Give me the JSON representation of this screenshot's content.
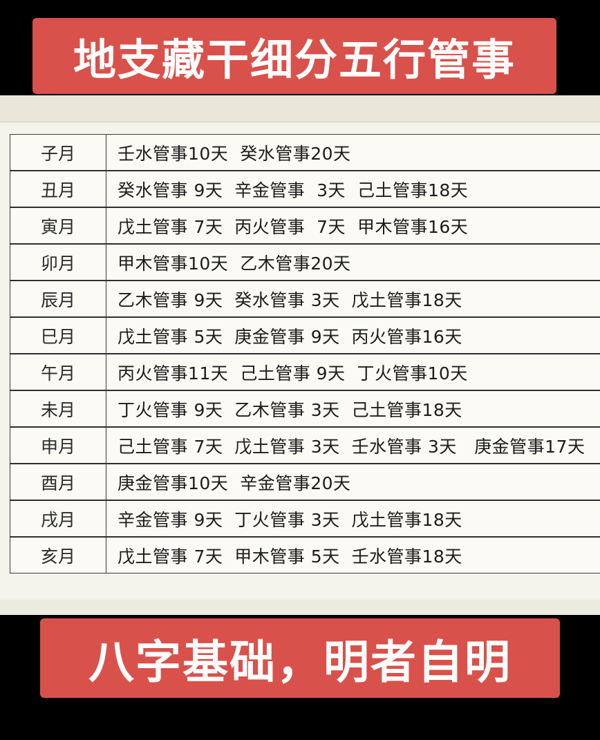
{
  "header": {
    "title": "地支藏干细分五行管事"
  },
  "footer": {
    "caption": "八字基础，明者自明"
  },
  "table": {
    "rows": [
      {
        "month": "子月",
        "detail": "壬水管事10天  癸水管事20天"
      },
      {
        "month": "丑月",
        "detail": "癸水管事 9天  辛金管事  3天  己土管事18天"
      },
      {
        "month": "寅月",
        "detail": "戊土管事 7天  丙火管事  7天  甲木管事16天"
      },
      {
        "month": "卯月",
        "detail": "甲木管事10天  乙木管事20天"
      },
      {
        "month": "辰月",
        "detail": "乙木管事 9天  癸水管事 3天  戊土管事18天"
      },
      {
        "month": "巳月",
        "detail": "戊土管事 5天  庚金管事 9天  丙火管事16天"
      },
      {
        "month": "午月",
        "detail": "丙火管事11天  己土管事 9天  丁火管事10天"
      },
      {
        "month": "未月",
        "detail": "丁火管事 9天  乙木管事 3天  己土管事18天"
      },
      {
        "month": "申月",
        "detail": "己土管事 7天  戊土管事 3天  壬水管事 3天   庚金管事17天"
      },
      {
        "month": "酉月",
        "detail": "庚金管事10天  辛金管事20天"
      },
      {
        "month": "戌月",
        "detail": "辛金管事 9天  丁火管事 3天  戊土管事18天"
      },
      {
        "month": "亥月",
        "detail": "戊土管事 7天  甲木管事 5天  壬水管事18天"
      }
    ]
  },
  "colors": {
    "banner": "#d9514b",
    "banner_text": "#ffffff",
    "background": "#000000",
    "paper": "#f4f3ec"
  }
}
